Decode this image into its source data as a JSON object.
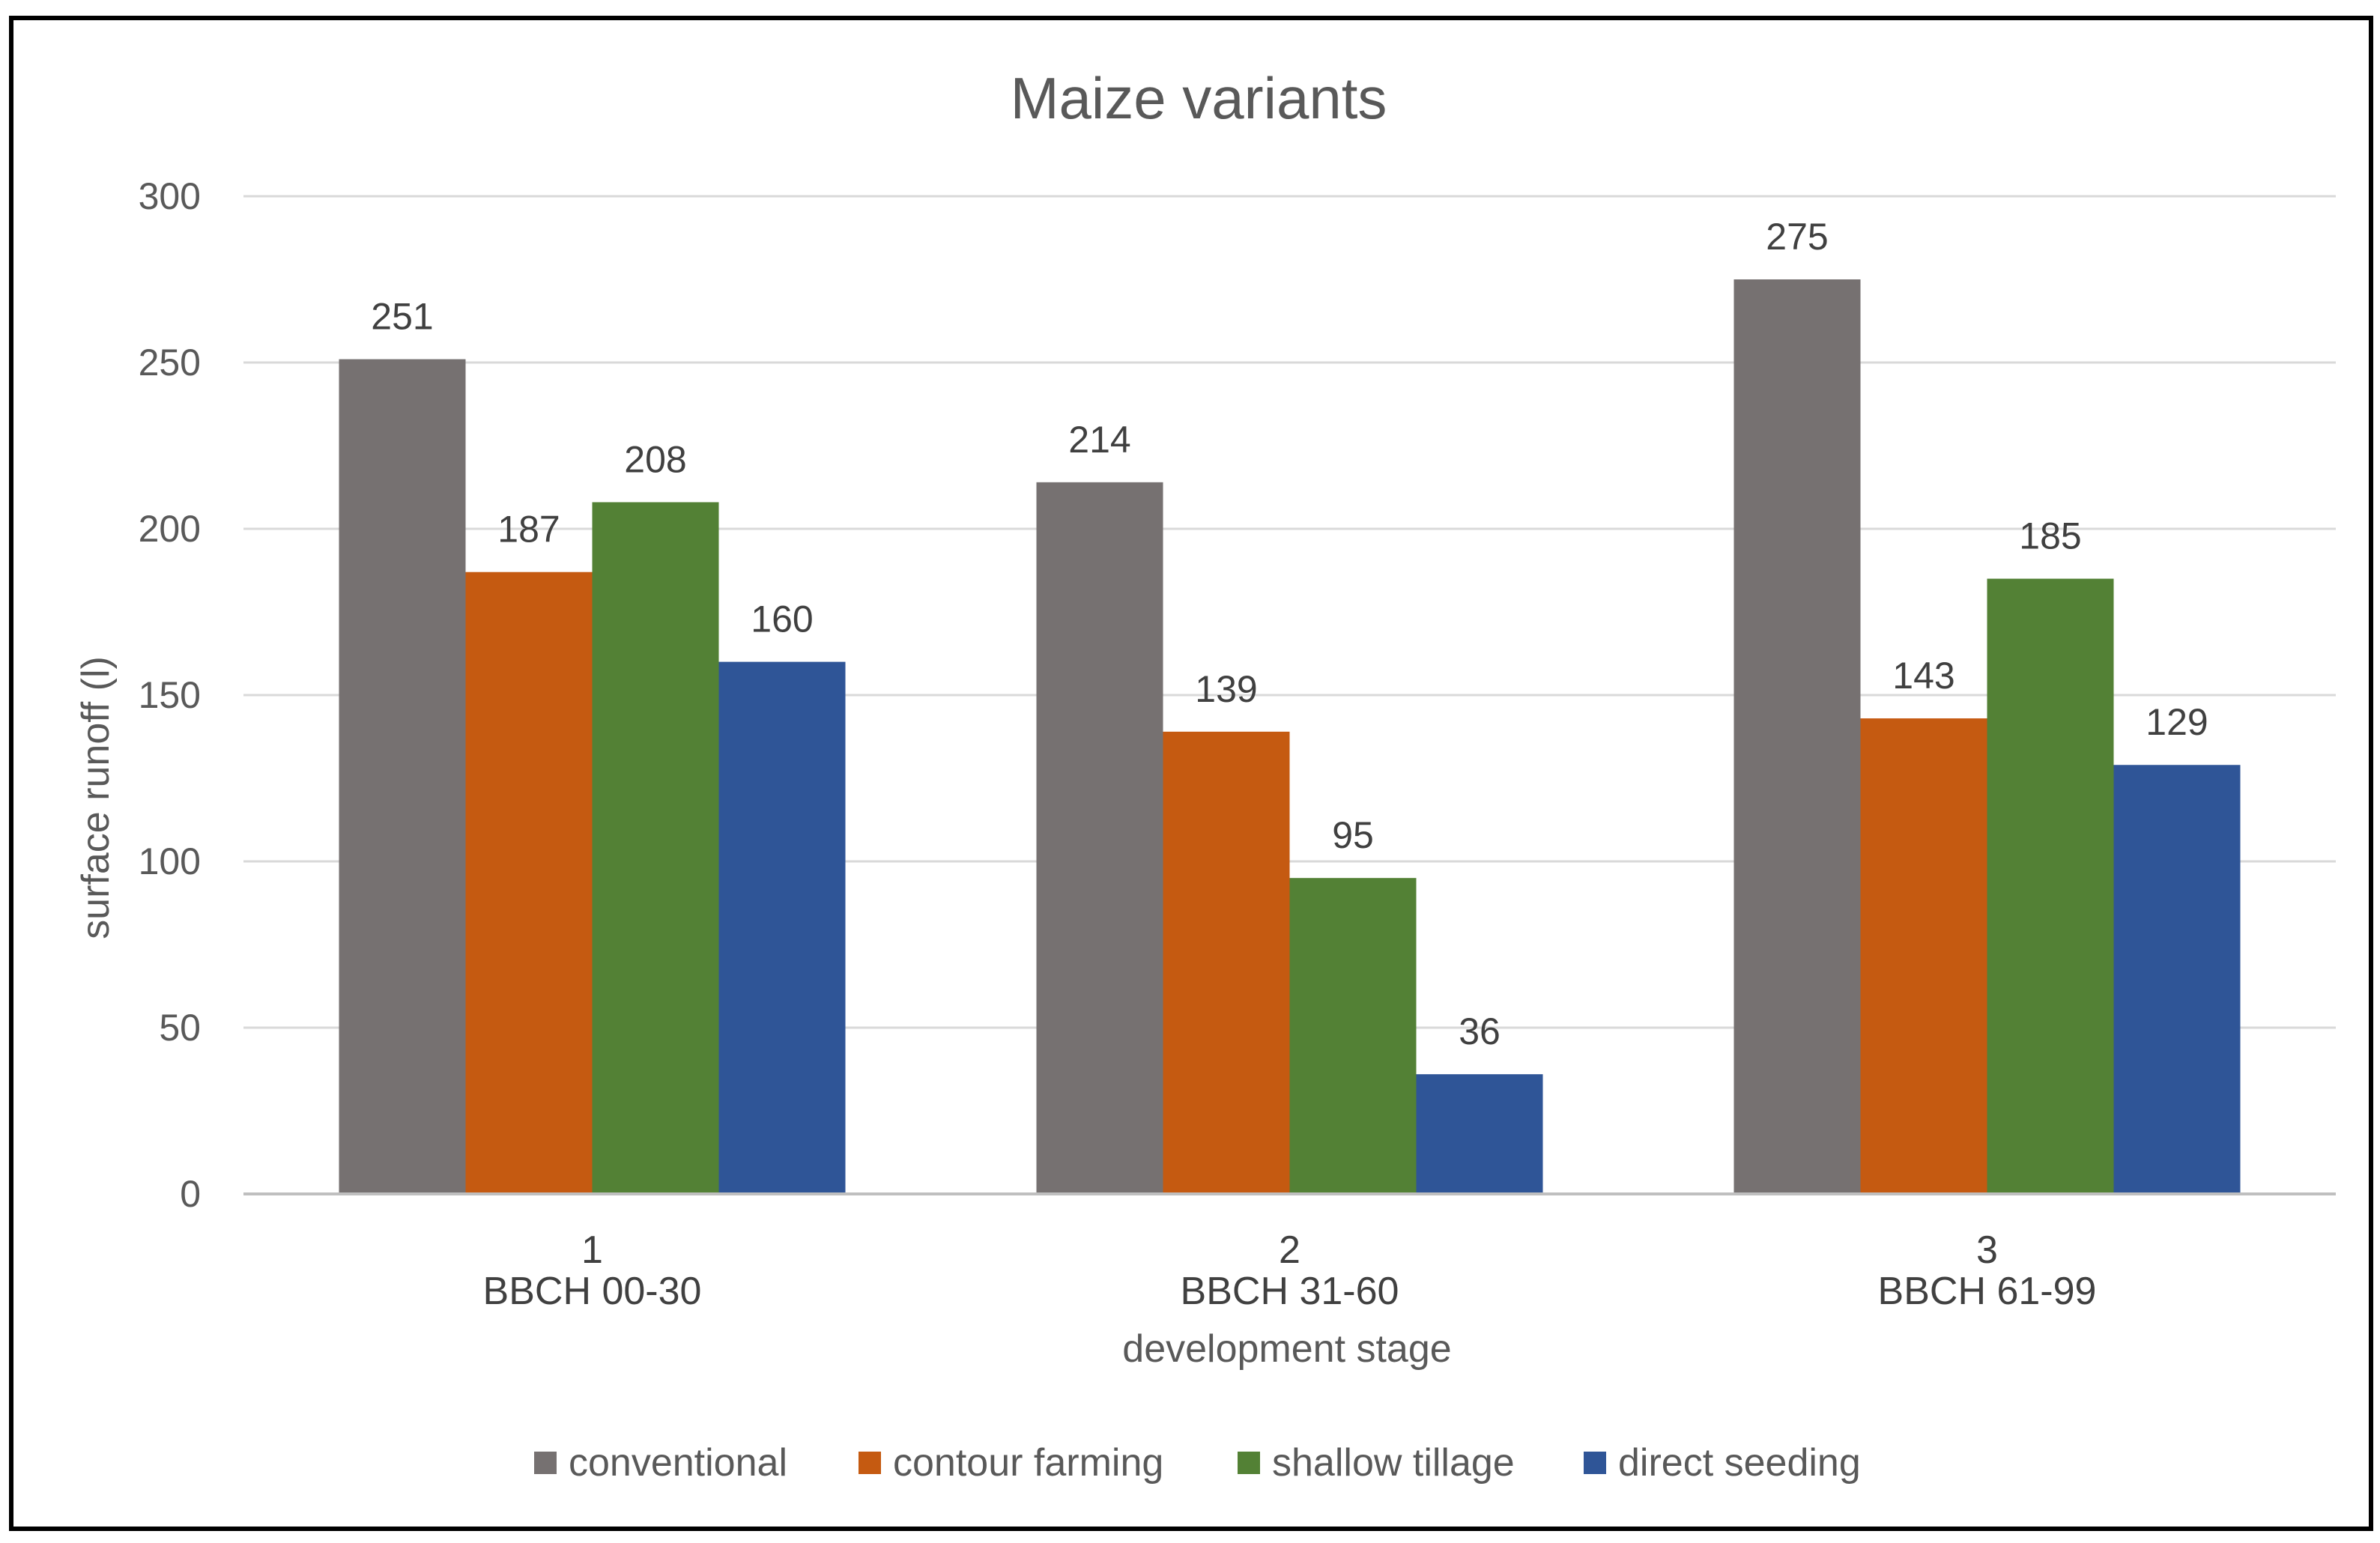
{
  "chart_data": {
    "type": "bar",
    "title": "Maize variants",
    "xlabel": "development stage",
    "ylabel": "surface runoff (l)",
    "ylim": [
      0,
      300
    ],
    "yticks": [
      0,
      50,
      100,
      150,
      200,
      250,
      300
    ],
    "grid": true,
    "legend_position": "bottom",
    "categories": [
      {
        "index": "1",
        "label": "BBCH 00-30"
      },
      {
        "index": "2",
        "label": "BBCH 31-60"
      },
      {
        "index": "3",
        "label": "BBCH 61-99"
      }
    ],
    "series": [
      {
        "name": "conventional",
        "color": "#767171",
        "values": [
          251,
          214,
          275
        ]
      },
      {
        "name": "contour farming",
        "color": "#C55A11",
        "values": [
          187,
          139,
          143
        ]
      },
      {
        "name": "shallow tillage",
        "color": "#538135",
        "values": [
          208,
          95,
          185
        ]
      },
      {
        "name": "direct seeding",
        "color": "#2F5597",
        "values": [
          160,
          36,
          129
        ]
      }
    ]
  }
}
